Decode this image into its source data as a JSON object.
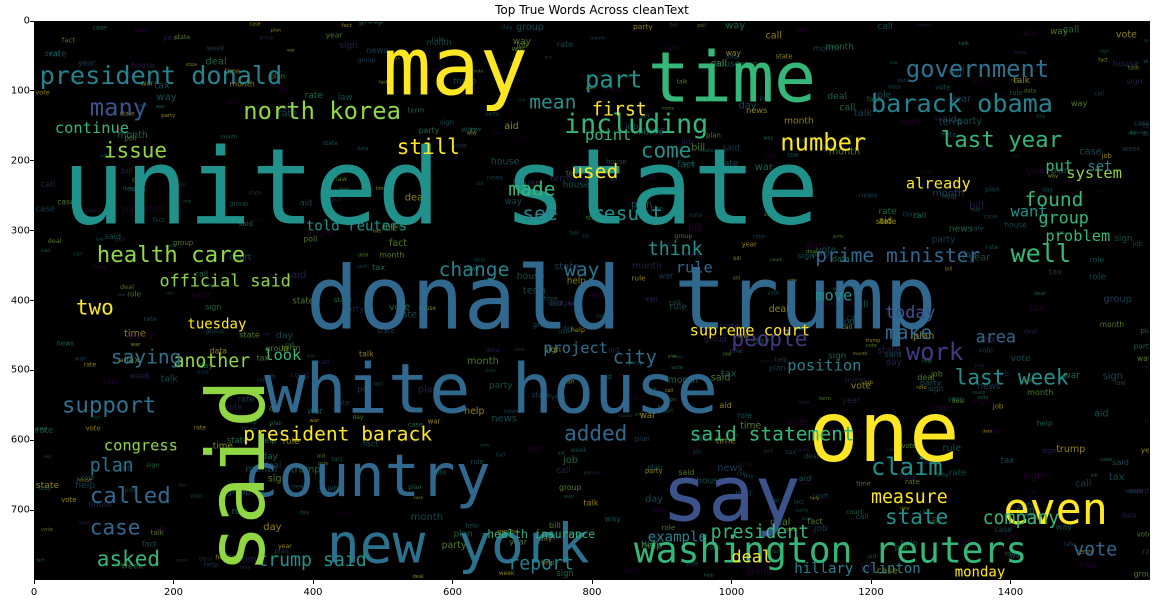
{
  "chart_data": {
    "type": "wordcloud",
    "title": "Top True Words Across cleanText",
    "xlabel": "",
    "ylabel": "",
    "xlim": [
      0,
      1600
    ],
    "ylim": [
      800,
      0
    ],
    "x_ticks": [
      "0",
      "200",
      "400",
      "600",
      "800",
      "1000",
      "1200",
      "1400"
    ],
    "y_ticks": [
      "0",
      "100",
      "200",
      "300",
      "400",
      "500",
      "600",
      "700"
    ],
    "background": "#000000",
    "palette": [
      "#fde725",
      "#35b779",
      "#21918c",
      "#31688e",
      "#443983",
      "#440154",
      "#90d743",
      "#26828e"
    ],
    "words": [
      {
        "text": "united state",
        "x": 40,
        "y": 290,
        "size": 150,
        "color": "#21918c"
      },
      {
        "text": "donald trump",
        "x": 390,
        "y": 440,
        "size": 125,
        "color": "#31688e"
      },
      {
        "text": "white house",
        "x": 330,
        "y": 560,
        "size": 98,
        "color": "#31688e"
      },
      {
        "text": "one",
        "x": 1110,
        "y": 630,
        "size": 120,
        "color": "#fde725"
      },
      {
        "text": "say",
        "x": 900,
        "y": 715,
        "size": 110,
        "color": "#3b528b"
      },
      {
        "text": "may",
        "x": 500,
        "y": 105,
        "size": 115,
        "color": "#fde725"
      },
      {
        "text": "time",
        "x": 880,
        "y": 115,
        "size": 100,
        "color": "#35b779"
      },
      {
        "text": "country",
        "x": 300,
        "y": 680,
        "size": 84,
        "color": "#31688e"
      },
      {
        "text": "new york",
        "x": 420,
        "y": 775,
        "size": 78,
        "color": "#2c728e"
      },
      {
        "text": "washington reuters",
        "x": 860,
        "y": 775,
        "size": 52,
        "color": "#35b779"
      },
      {
        "text": "even",
        "x": 1390,
        "y": 720,
        "size": 62,
        "color": "#fde725"
      },
      {
        "text": "president donald",
        "x": 8,
        "y": 90,
        "size": 36,
        "color": "#26828e"
      },
      {
        "text": "north korea",
        "x": 300,
        "y": 140,
        "size": 34,
        "color": "#90d743"
      },
      {
        "text": "including",
        "x": 760,
        "y": 160,
        "size": 38,
        "color": "#35b779"
      },
      {
        "text": "government",
        "x": 1250,
        "y": 80,
        "size": 34,
        "color": "#2c728e"
      },
      {
        "text": "barack obama",
        "x": 1200,
        "y": 130,
        "size": 36,
        "color": "#26828e"
      },
      {
        "text": "part",
        "x": 790,
        "y": 95,
        "size": 34,
        "color": "#21918c"
      },
      {
        "text": "many",
        "x": 80,
        "y": 135,
        "size": 34,
        "color": "#3b528b"
      },
      {
        "text": "issue",
        "x": 100,
        "y": 195,
        "size": 30,
        "color": "#90d743"
      },
      {
        "text": "still",
        "x": 520,
        "y": 190,
        "size": 30,
        "color": "#fde725"
      },
      {
        "text": "number",
        "x": 1070,
        "y": 185,
        "size": 34,
        "color": "#fde725"
      },
      {
        "text": "last year",
        "x": 1300,
        "y": 180,
        "size": 32,
        "color": "#35b779"
      },
      {
        "text": "come",
        "x": 870,
        "y": 195,
        "size": 30,
        "color": "#21918c"
      },
      {
        "text": "health care",
        "x": 90,
        "y": 345,
        "size": 32,
        "color": "#90d743"
      },
      {
        "text": "official said",
        "x": 180,
        "y": 380,
        "size": 24,
        "color": "#90d743"
      },
      {
        "text": "change",
        "x": 580,
        "y": 365,
        "size": 28,
        "color": "#26828e"
      },
      {
        "text": "way",
        "x": 760,
        "y": 365,
        "size": 28,
        "color": "#2c728e"
      },
      {
        "text": "think",
        "x": 880,
        "y": 335,
        "size": 26,
        "color": "#21918c"
      },
      {
        "text": "prime minister",
        "x": 1120,
        "y": 345,
        "size": 28,
        "color": "#31688e"
      },
      {
        "text": "well",
        "x": 1400,
        "y": 345,
        "size": 36,
        "color": "#35b779"
      },
      {
        "text": "support",
        "x": 40,
        "y": 560,
        "size": 32,
        "color": "#2c728e"
      },
      {
        "text": "another",
        "x": 200,
        "y": 495,
        "size": 26,
        "color": "#90d743"
      },
      {
        "text": "people",
        "x": 1000,
        "y": 465,
        "size": 30,
        "color": "#443983"
      },
      {
        "text": "work",
        "x": 1250,
        "y": 485,
        "size": 34,
        "color": "#443983"
      },
      {
        "text": "last week",
        "x": 1320,
        "y": 520,
        "size": 30,
        "color": "#21918c"
      },
      {
        "text": "added",
        "x": 760,
        "y": 600,
        "size": 30,
        "color": "#31688e"
      },
      {
        "text": "president barack",
        "x": 300,
        "y": 600,
        "size": 28,
        "color": "#fde725"
      },
      {
        "text": "said statement",
        "x": 940,
        "y": 600,
        "size": 28,
        "color": "#35b779"
      },
      {
        "text": "claim",
        "x": 1200,
        "y": 650,
        "size": 34,
        "color": "#21918c"
      },
      {
        "text": "called",
        "x": 80,
        "y": 690,
        "size": 32,
        "color": "#31688e"
      },
      {
        "text": "case",
        "x": 80,
        "y": 735,
        "size": 30,
        "color": "#31688e"
      },
      {
        "text": "asked",
        "x": 90,
        "y": 780,
        "size": 30,
        "color": "#35b779"
      },
      {
        "text": "trump said",
        "x": 320,
        "y": 780,
        "size": 26,
        "color": "#21918c"
      },
      {
        "text": "report",
        "x": 680,
        "y": 785,
        "size": 26,
        "color": "#26828e"
      },
      {
        "text": "president",
        "x": 970,
        "y": 740,
        "size": 26,
        "color": "#35b779"
      },
      {
        "text": "state",
        "x": 1220,
        "y": 720,
        "size": 30,
        "color": "#21918c"
      },
      {
        "text": "company",
        "x": 1360,
        "y": 720,
        "size": 26,
        "color": "#35b779"
      },
      {
        "text": "measure",
        "x": 1200,
        "y": 690,
        "size": 26,
        "color": "#fde725"
      },
      {
        "text": "vote",
        "x": 1490,
        "y": 765,
        "size": 26,
        "color": "#31688e"
      },
      {
        "text": "deal",
        "x": 1000,
        "y": 775,
        "size": 24,
        "color": "#fde725"
      },
      {
        "text": "plan",
        "x": 80,
        "y": 645,
        "size": 26,
        "color": "#2c728e"
      },
      {
        "text": "congress",
        "x": 100,
        "y": 615,
        "size": 22,
        "color": "#90d743"
      },
      {
        "text": "two",
        "x": 60,
        "y": 420,
        "size": 30,
        "color": "#fde725"
      },
      {
        "text": "found",
        "x": 1420,
        "y": 265,
        "size": 28,
        "color": "#35b779"
      },
      {
        "text": "group",
        "x": 1440,
        "y": 290,
        "size": 24,
        "color": "#35b779"
      },
      {
        "text": "problem",
        "x": 1450,
        "y": 315,
        "size": 22,
        "color": "#35b779"
      },
      {
        "text": "system",
        "x": 1480,
        "y": 225,
        "size": 22,
        "color": "#90d743"
      },
      {
        "text": "made",
        "x": 680,
        "y": 250,
        "size": 28,
        "color": "#35b779"
      },
      {
        "text": "see",
        "x": 700,
        "y": 285,
        "size": 28,
        "color": "#26828e"
      },
      {
        "text": "result",
        "x": 800,
        "y": 285,
        "size": 28,
        "color": "#21918c"
      },
      {
        "text": "used",
        "x": 770,
        "y": 225,
        "size": 28,
        "color": "#fde725"
      },
      {
        "text": "point",
        "x": 790,
        "y": 170,
        "size": 22,
        "color": "#35b779"
      },
      {
        "text": "mean",
        "x": 710,
        "y": 125,
        "size": 28,
        "color": "#21918c"
      },
      {
        "text": "first",
        "x": 800,
        "y": 135,
        "size": 26,
        "color": "#fde725"
      },
      {
        "text": "continue",
        "x": 30,
        "y": 160,
        "size": 22,
        "color": "#35b779"
      },
      {
        "text": "today",
        "x": 1220,
        "y": 425,
        "size": 24,
        "color": "#3b528b"
      },
      {
        "text": "make",
        "x": 1220,
        "y": 455,
        "size": 28,
        "color": "#31688e"
      },
      {
        "text": "position",
        "x": 1080,
        "y": 500,
        "size": 22,
        "color": "#26828e"
      },
      {
        "text": "look",
        "x": 330,
        "y": 485,
        "size": 22,
        "color": "#35b779"
      },
      {
        "text": "tuesday",
        "x": 220,
        "y": 440,
        "size": 20,
        "color": "#fde725"
      },
      {
        "text": "project",
        "x": 730,
        "y": 475,
        "size": 22,
        "color": "#2c728e"
      },
      {
        "text": "city",
        "x": 830,
        "y": 490,
        "size": 26,
        "color": "#2c728e"
      },
      {
        "text": "already",
        "x": 1250,
        "y": 240,
        "size": 22,
        "color": "#fde725"
      },
      {
        "text": "put",
        "x": 1450,
        "y": 215,
        "size": 22,
        "color": "#35b779"
      },
      {
        "text": "set",
        "x": 1510,
        "y": 215,
        "size": 20,
        "color": "#26828e"
      },
      {
        "text": "hillary clinton",
        "x": 1090,
        "y": 790,
        "size": 20,
        "color": "#26828e"
      },
      {
        "text": "monday",
        "x": 1320,
        "y": 795,
        "size": 20,
        "color": "#fde725"
      },
      {
        "text": "example",
        "x": 880,
        "y": 745,
        "size": 20,
        "color": "#26828e"
      },
      {
        "text": "health insurance",
        "x": 650,
        "y": 740,
        "size": 16,
        "color": "#35b779"
      },
      {
        "text": "told reuters",
        "x": 390,
        "y": 300,
        "size": 20,
        "color": "#21918c"
      },
      {
        "text": "supreme court",
        "x": 940,
        "y": 450,
        "size": 22,
        "color": "#fde725"
      },
      {
        "text": "saying",
        "x": 110,
        "y": 490,
        "size": 28,
        "color": "#2c728e"
      },
      {
        "text": "rule",
        "x": 920,
        "y": 360,
        "size": 22,
        "color": "#31688e"
      },
      {
        "text": "move",
        "x": 1120,
        "y": 400,
        "size": 22,
        "color": "#21918c"
      },
      {
        "text": "area",
        "x": 1350,
        "y": 460,
        "size": 24,
        "color": "#31688e"
      },
      {
        "text": "want",
        "x": 1400,
        "y": 280,
        "size": 22,
        "color": "#21918c"
      }
    ]
  }
}
